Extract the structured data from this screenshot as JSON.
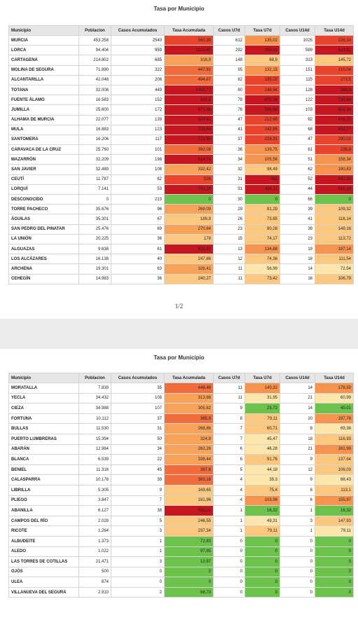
{
  "pages": [
    {
      "title": "Tasa por Municipio",
      "columns": [
        "Municipio",
        "Poblacion",
        "Casos Acumulados",
        "Tasa Acumulada",
        "Casos U7d",
        "Tasa U7d",
        "Casos U14d",
        "Tasa U14d"
      ],
      "rows": [
        [
          "MURCIA",
          "453.258",
          "2540",
          "560,39",
          "612",
          "135,02",
          "1025",
          "226,14"
        ],
        [
          "LORCA",
          "94.404",
          "959",
          "1015,85",
          "292",
          "309,31",
          "589",
          "623,91"
        ],
        [
          "CARTAGENA",
          "214.802",
          "685",
          "318,9",
          "148",
          "68,9",
          "313",
          "145,72"
        ],
        [
          "MOLINA DE SEGURA",
          "71.890",
          "322",
          "447,91",
          "95",
          "132,15",
          "151",
          "210,04"
        ],
        [
          "ALCANTARILLA",
          "42.048",
          "208",
          "494,67",
          "82",
          "195,02",
          "115",
          "273,5"
        ],
        [
          "TOTANA",
          "32.008",
          "449",
          "1402,77",
          "80",
          "249,94",
          "128",
          "399,9"
        ],
        [
          "FUENTE ÁLAMO",
          "16.583",
          "152",
          "916,6",
          "78",
          "470,36",
          "122",
          "735,69"
        ],
        [
          "JUMILLA",
          "25.600",
          "172",
          "671,88",
          "76",
          "296,88",
          "103",
          "402,34"
        ],
        [
          "ALHAMA DE MURCIA",
          "22.077",
          "139",
          "629,61",
          "47",
          "212,89",
          "92",
          "416,72"
        ],
        [
          "MULA",
          "16.883",
          "123",
          "728,54",
          "41",
          "242,85",
          "68",
          "402,77"
        ],
        [
          "SANTOMERA",
          "16.206",
          "117",
          "721,95",
          "37",
          "228,31",
          "47",
          "290,02"
        ],
        [
          "CARAVACA DE LA CRUZ",
          "25.760",
          "101",
          "392,08",
          "36",
          "139,75",
          "61",
          "236,8"
        ],
        [
          "MAZARRÓN",
          "32.209",
          "198",
          "614,74",
          "34",
          "105,56",
          "51",
          "158,34"
        ],
        [
          "SAN JAVIER",
          "32.489",
          "108",
          "332,42",
          "32",
          "98,49",
          "62",
          "190,83"
        ],
        [
          "CEUTÍ",
          "11.787",
          "62",
          "526",
          "31",
          "263",
          "52",
          "441,16"
        ],
        [
          "LORQUÍ",
          "7.141",
          "53",
          "742,19",
          "31",
          "434,11",
          "44",
          "616,16"
        ],
        [
          "DESCONOCIDO",
          "0",
          "213",
          "0",
          "30",
          "0",
          "66",
          "0"
        ],
        [
          "TORRE PACHECO",
          "35.676",
          "96",
          "269,09",
          "29",
          "81,29",
          "39",
          "109,32"
        ],
        [
          "ÁGUILAS",
          "35.301",
          "67",
          "189,8",
          "26",
          "73,65",
          "41",
          "116,14"
        ],
        [
          "SAN PEDRO DEL PINATAR",
          "25.476",
          "69",
          "270,84",
          "23",
          "90,28",
          "38",
          "149,16"
        ],
        [
          "LA UNIÓN",
          "20.225",
          "36",
          "178",
          "15",
          "74,17",
          "23",
          "113,72"
        ],
        [
          "ALGUAZAS",
          "9.638",
          "61",
          "632,91",
          "13",
          "134,88",
          "19",
          "197,14"
        ],
        [
          "LOS ALCÁZARES",
          "16.138",
          "40",
          "247,86",
          "12",
          "74,36",
          "18",
          "111,54"
        ],
        [
          "ARCHENA",
          "19.301",
          "63",
          "326,41",
          "11",
          "56,99",
          "14",
          "72,54"
        ],
        [
          "CEHEGÍN",
          "14.983",
          "36",
          "240,27",
          "11",
          "73,42",
          "16",
          "106,79"
        ]
      ],
      "footer": "1/2"
    },
    {
      "title": "Tasa por Municipio",
      "columns": [
        "Municipio",
        "Poblacion",
        "Casos Acumulados",
        "Tasa Acumulada",
        "Casos U7d",
        "Tasa U7d",
        "Casos U14d",
        "Tasa U14d"
      ],
      "rows": [
        [
          "MORATALLA",
          "7.839",
          "35",
          "446,49",
          "11",
          "140,32",
          "14",
          "178,59"
        ],
        [
          "YECLA",
          "34.432",
          "108",
          "313,66",
          "11",
          "31,95",
          "21",
          "60,99"
        ],
        [
          "CIEZA",
          "34.988",
          "107",
          "305,82",
          "9",
          "25,72",
          "14",
          "40,01"
        ],
        [
          "FORTUNA",
          "10.112",
          "37",
          "365,9",
          "8",
          "79,11",
          "20",
          "197,78"
        ],
        [
          "BULLAS",
          "11.530",
          "31",
          "268,86",
          "7",
          "60,71",
          "8",
          "69,38"
        ],
        [
          "PUERTO LUMBRERAS",
          "15.394",
          "50",
          "324,8",
          "7",
          "45,47",
          "18",
          "116,93"
        ],
        [
          "ABARÁN",
          "12.964",
          "34",
          "262,26",
          "6",
          "46,28",
          "21",
          "161,99"
        ],
        [
          "BLANCA",
          "6.539",
          "22",
          "336,44",
          "6",
          "91,76",
          "9",
          "137,64"
        ],
        [
          "BENIEL",
          "11.316",
          "45",
          "397,6",
          "5",
          "44,18",
          "12",
          "106,03"
        ],
        [
          "CALASPARRA",
          "10.178",
          "39",
          "383,18",
          "4",
          "39,3",
          "9",
          "88,43"
        ],
        [
          "LIBRILLA",
          "5.305",
          "9",
          "169,65",
          "4",
          "75,4",
          "6",
          "113,1"
        ],
        [
          "PLIEGO",
          "3.847",
          "7",
          "181,96",
          "4",
          "103,98",
          "6",
          "155,97"
        ],
        [
          "ABANILLA",
          "6.127",
          "38",
          "620,21",
          "1",
          "16,32",
          "1",
          "16,32"
        ],
        [
          "CAMPOS DEL RÍO",
          "2.028",
          "5",
          "246,55",
          "1",
          "49,31",
          "3",
          "147,93"
        ],
        [
          "RICOTE",
          "1.264",
          "3",
          "237,34",
          "1",
          "79,11",
          "1",
          "79,11"
        ],
        [
          "ALBUDEITE",
          "1.373",
          "1",
          "72,83",
          "0",
          "0",
          "0",
          "0"
        ],
        [
          "ALEDO",
          "1.022",
          "1",
          "97,85",
          "0",
          "0",
          "0",
          "0"
        ],
        [
          "LAS TORRES DE COTILLAS",
          "21.471",
          "3",
          "13,97",
          "0",
          "0",
          "0",
          "0"
        ],
        [
          "OJÓS",
          "500",
          "0",
          "0",
          "0",
          "0",
          "0",
          "0"
        ],
        [
          "ULEA",
          "874",
          "0",
          "0",
          "0",
          "0",
          "0",
          "0"
        ],
        [
          "VILLANUEVA DEL SEGURA",
          "2.910",
          "2",
          "68,73",
          "0",
          "0",
          "0",
          "0"
        ]
      ]
    }
  ]
}
